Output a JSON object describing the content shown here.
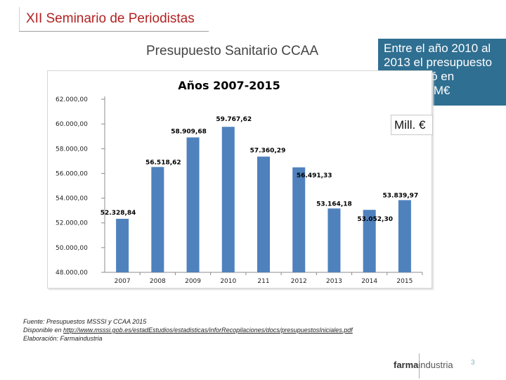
{
  "header": {
    "title": "XII Seminario de Periodistas"
  },
  "slide": {
    "title": "Presupuesto Sanitario CCAA"
  },
  "callout": {
    "text": "Entre el año 2010 al 2013 el presupuesto disminuyó en 6.603,44 M€"
  },
  "unit": {
    "label": "Mill. €"
  },
  "chart_data": {
    "type": "bar",
    "title": "Años  2007-2015",
    "categories": [
      "2007",
      "2008",
      "2009",
      "2010",
      "211",
      "2012",
      "2013",
      "2014",
      "2015"
    ],
    "values": [
      52328.84,
      56518.62,
      58909.68,
      59767.62,
      57360.29,
      56491.33,
      53164.18,
      53052.3,
      53839.97
    ],
    "data_labels": [
      "52.328,84",
      "56.518,62",
      "58.909,68",
      "59.767,62",
      "57.360,29",
      "56.491,33",
      "53.164,18",
      "53.052,30",
      "53.839,97"
    ],
    "y_ticks": [
      48000,
      50000,
      52000,
      54000,
      56000,
      58000,
      60000,
      62000
    ],
    "y_tick_labels": [
      "48.000,00",
      "50.000,00",
      "52.000,00",
      "54.000,00",
      "56.000,00",
      "58.000,00",
      "60.000,00",
      "62.000,00"
    ],
    "ylim": [
      48000,
      62000
    ],
    "bar_color": "#4f81bd",
    "grid": false,
    "legend": "none"
  },
  "source": {
    "line1": "Fuente: Presupuestos  MSSSI y CCAA 2015",
    "line2_prefix": "Disponible en ",
    "line2_link": "http://www.msssi.gob.es/estadEstudios/estadisticas/inforRecopilaciones/docs/presupuestosIniciales.pdf",
    "line3": "Elaboración:  Farmaindustria"
  },
  "footer": {
    "logo_bold": "farma",
    "logo_rest": "industria",
    "page": "3"
  }
}
